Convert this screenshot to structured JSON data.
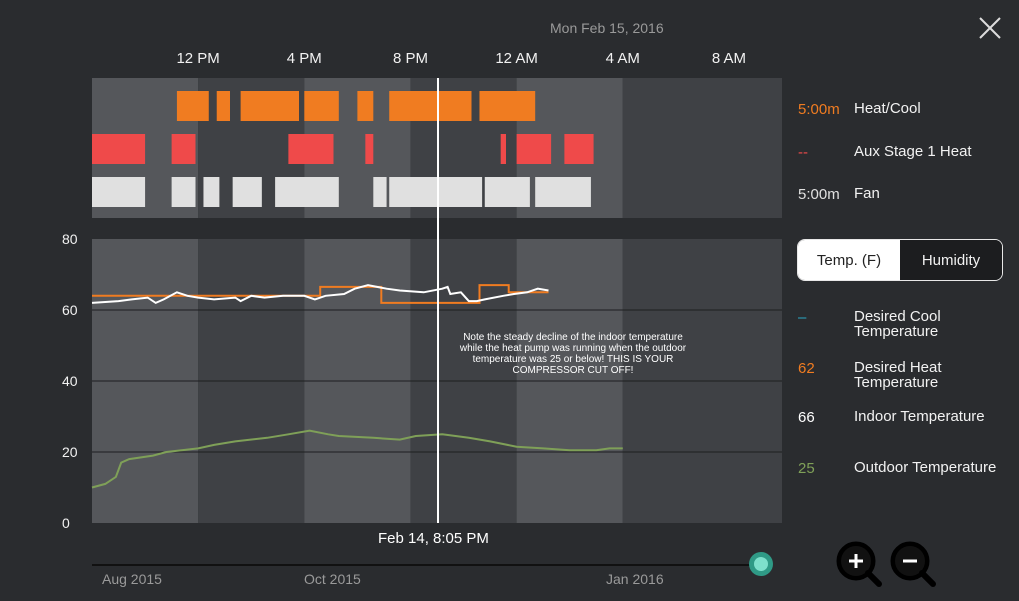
{
  "header": {
    "date": "Mon Feb 15, 2016",
    "time_ticks": [
      "12 PM",
      "4 PM",
      "8 PM",
      "12 AM",
      "4 AM",
      "8 AM"
    ]
  },
  "status_legend": [
    {
      "value": "5:00m",
      "label": "Heat/Cool",
      "color": "#f07c21"
    },
    {
      "value": "--",
      "label": "Aux Stage 1 Heat",
      "color": "#ef4a4a"
    },
    {
      "value": "5:00m",
      "label": "Fan",
      "color": "#e0e0e0"
    }
  ],
  "toggle": {
    "temp_label": "Temp. (F)",
    "humidity_label": "Humidity",
    "selected": "Temp. (F)"
  },
  "temp_legend": [
    {
      "value": "–",
      "label": "Desired Cool Temperature",
      "color": "#2aa9c4"
    },
    {
      "value": "62",
      "label": "Desired Heat Temperature",
      "color": "#f07c21"
    },
    {
      "value": "66",
      "label": "Indoor Temperature",
      "color": "#ffffff"
    },
    {
      "value": "25",
      "label": "Outdoor Temperature",
      "color": "#7fa058"
    }
  ],
  "annotation": "Note the steady decline of the indoor temperature while the heat pump was running when the outdoor temperature was 25 or below! THIS IS YOUR COMPRESSOR CUT OFF!",
  "hover_label": "Feb 14, 8:05 PM",
  "scrubber": {
    "months": [
      "Aug 2015",
      "Oct 2015",
      "Jan 2016"
    ]
  },
  "chart_data": {
    "type": "line",
    "ylim": [
      0,
      80
    ],
    "yticks": [
      "80",
      "60",
      "40",
      "20",
      "0"
    ],
    "x_hours_from_12pm": [
      -3,
      23
    ],
    "series": [
      {
        "name": "Desired Heat Temperature",
        "points": [
          [
            -3,
            64
          ],
          [
            5.6,
            64
          ],
          [
            5.6,
            66.5
          ],
          [
            7.9,
            66.5
          ],
          [
            7.9,
            62
          ],
          [
            11.6,
            62
          ],
          [
            11.6,
            67
          ],
          [
            12.7,
            67
          ],
          [
            12.7,
            65
          ],
          [
            14.2,
            65
          ]
        ]
      },
      {
        "name": "Indoor Temperature",
        "points": [
          [
            -3,
            62
          ],
          [
            -2,
            62.5
          ],
          [
            -1.5,
            63
          ],
          [
            -0.9,
            63.5
          ],
          [
            -0.6,
            62
          ],
          [
            -0.3,
            63
          ],
          [
            0.2,
            65
          ],
          [
            0.6,
            64
          ],
          [
            1,
            63.5
          ],
          [
            1.6,
            63
          ],
          [
            2.4,
            63.5
          ],
          [
            2.6,
            62.5
          ],
          [
            3,
            64
          ],
          [
            3.5,
            63.5
          ],
          [
            4.2,
            64
          ],
          [
            5,
            64
          ],
          [
            5.4,
            63
          ],
          [
            5.8,
            64
          ],
          [
            6.5,
            64.5
          ],
          [
            6.9,
            66
          ],
          [
            7.4,
            67
          ],
          [
            8.1,
            66
          ],
          [
            8.6,
            65.5
          ],
          [
            9.5,
            65
          ],
          [
            10.2,
            66
          ],
          [
            10.4,
            66.5
          ],
          [
            10.5,
            64.5
          ],
          [
            10.9,
            65
          ],
          [
            11.2,
            62.5
          ],
          [
            11.5,
            62.5
          ],
          [
            11.8,
            63
          ],
          [
            12.5,
            64
          ],
          [
            12.9,
            64.5
          ],
          [
            13.4,
            65
          ],
          [
            13.8,
            66
          ],
          [
            14.2,
            65.5
          ]
        ]
      },
      {
        "name": "Outdoor Temperature",
        "points": [
          [
            -3,
            10
          ],
          [
            -2.5,
            11
          ],
          [
            -2.1,
            13
          ],
          [
            -1.9,
            17
          ],
          [
            -1.6,
            18
          ],
          [
            -0.7,
            19
          ],
          [
            -0.2,
            20
          ],
          [
            1,
            21
          ],
          [
            1.6,
            22
          ],
          [
            2.4,
            23
          ],
          [
            3.6,
            24
          ],
          [
            4.4,
            25
          ],
          [
            5.2,
            26
          ],
          [
            5.9,
            25
          ],
          [
            6.3,
            24.5
          ],
          [
            7.6,
            24
          ],
          [
            8.6,
            23.5
          ],
          [
            9.2,
            24.5
          ],
          [
            10.2,
            25
          ],
          [
            11.2,
            24
          ],
          [
            12,
            23
          ],
          [
            13,
            21.5
          ],
          [
            14,
            21
          ],
          [
            15,
            20.5
          ],
          [
            16,
            20.5
          ],
          [
            16.5,
            21
          ],
          [
            17,
            21
          ]
        ]
      }
    ]
  },
  "status_segments": {
    "heat_cool": [
      [
        0.2,
        1.4
      ],
      [
        1.7,
        2.2
      ],
      [
        2.6,
        4.8
      ],
      [
        5,
        6.3
      ],
      [
        7.0,
        7.6
      ],
      [
        8.2,
        11.3
      ],
      [
        11.6,
        13.7
      ]
    ],
    "aux_heat": [
      [
        -3,
        -1
      ],
      [
        0.0,
        0.9
      ],
      [
        4.4,
        6.1
      ],
      [
        7.3,
        7.6
      ],
      [
        12.4,
        12.6
      ],
      [
        13.0,
        14.3
      ],
      [
        14.8,
        15.9
      ]
    ],
    "fan": [
      [
        -3,
        -1
      ],
      [
        0.0,
        0.9
      ],
      [
        1.2,
        1.8
      ],
      [
        2.3,
        3.4
      ],
      [
        3.9,
        6.3
      ],
      [
        7.6,
        8.1
      ],
      [
        8.2,
        11.7
      ],
      [
        11.8,
        13.5
      ],
      [
        13.7,
        15.8
      ]
    ]
  }
}
